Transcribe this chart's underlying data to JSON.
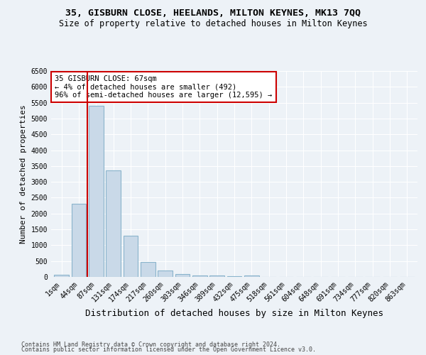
{
  "title": "35, GISBURN CLOSE, HEELANDS, MILTON KEYNES, MK13 7QQ",
  "subtitle": "Size of property relative to detached houses in Milton Keynes",
  "xlabel": "Distribution of detached houses by size in Milton Keynes",
  "ylabel": "Number of detached properties",
  "categories": [
    "1sqm",
    "44sqm",
    "87sqm",
    "131sqm",
    "174sqm",
    "217sqm",
    "260sqm",
    "303sqm",
    "346sqm",
    "389sqm",
    "432sqm",
    "475sqm",
    "518sqm",
    "561sqm",
    "604sqm",
    "648sqm",
    "691sqm",
    "734sqm",
    "777sqm",
    "820sqm",
    "863sqm"
  ],
  "values": [
    70,
    2300,
    5400,
    3370,
    1290,
    480,
    195,
    85,
    55,
    40,
    30,
    40,
    0,
    0,
    0,
    0,
    0,
    0,
    0,
    0,
    0
  ],
  "bar_color": "#c9d9e8",
  "bar_edge_color": "#8ab4cc",
  "vline_x": 1.5,
  "vline_color": "#cc0000",
  "annotation_text": "35 GISBURN CLOSE: 67sqm\n← 4% of detached houses are smaller (492)\n96% of semi-detached houses are larger (12,595) →",
  "annotation_box_color": "#ffffff",
  "annotation_box_edge": "#cc0000",
  "ylim": [
    0,
    6500
  ],
  "yticks": [
    0,
    500,
    1000,
    1500,
    2000,
    2500,
    3000,
    3500,
    4000,
    4500,
    5000,
    5500,
    6000,
    6500
  ],
  "footer_line1": "Contains HM Land Registry data © Crown copyright and database right 2024.",
  "footer_line2": "Contains public sector information licensed under the Open Government Licence v3.0.",
  "bg_color": "#edf2f7",
  "grid_color": "#ffffff",
  "title_fontsize": 9.5,
  "subtitle_fontsize": 8.5,
  "ylabel_fontsize": 8,
  "xlabel_fontsize": 9,
  "tick_fontsize": 7,
  "annot_fontsize": 7.5,
  "footer_fontsize": 6
}
